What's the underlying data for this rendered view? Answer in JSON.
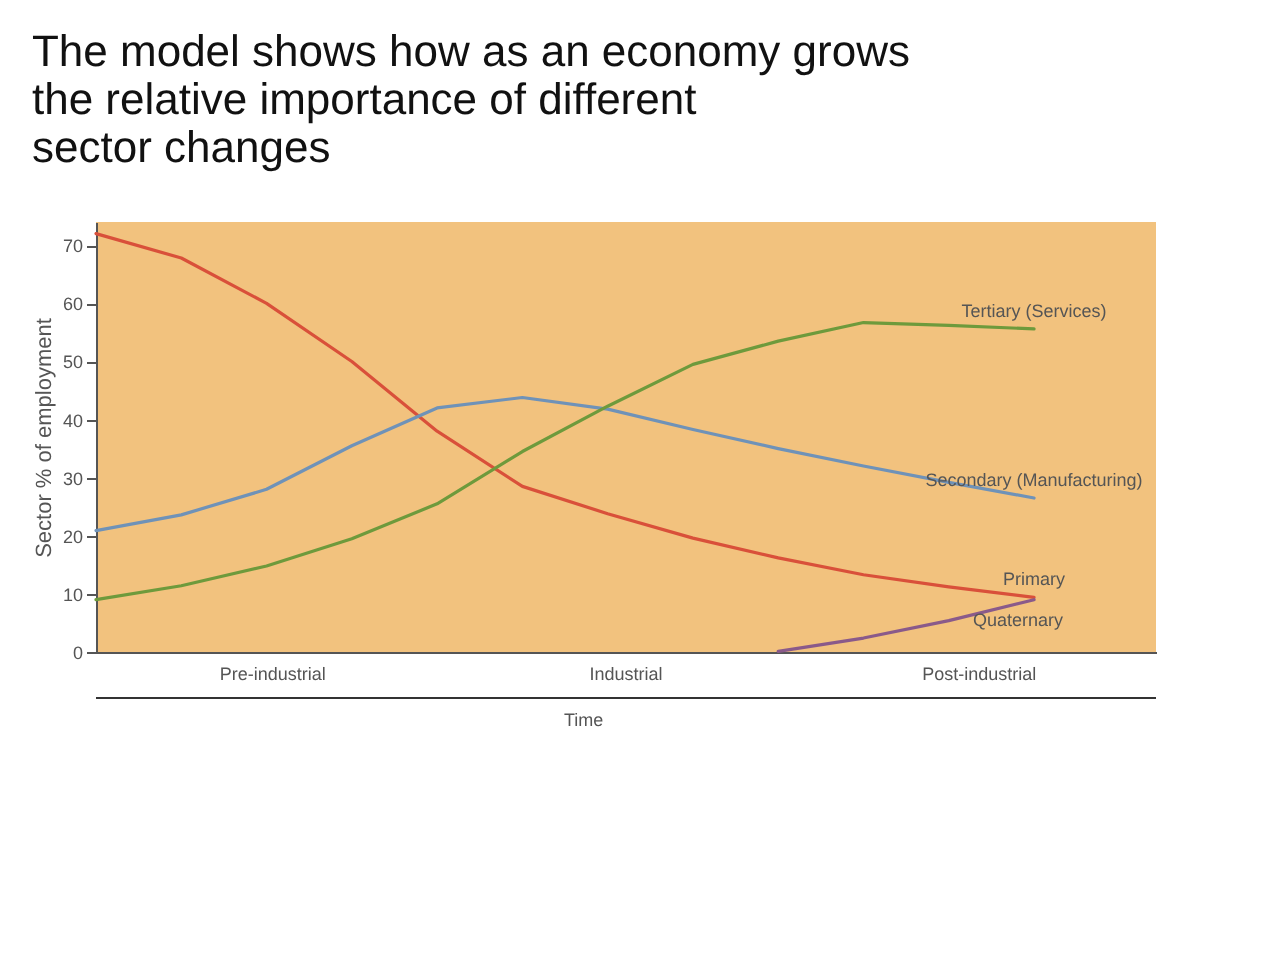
{
  "chart_data": {
    "type": "line",
    "title": "The model shows how as an economy grows the relative importance of different sector changes",
    "xlabel": "Time",
    "ylabel": "Sector % of employment",
    "categories": [
      null,
      null,
      null,
      null,
      null,
      null,
      null,
      null,
      null,
      null,
      null,
      null
    ],
    "ylim": [
      0,
      74
    ],
    "yticks": [
      0,
      10,
      20,
      30,
      40,
      50,
      60,
      70
    ],
    "grid": false,
    "legend": false,
    "marker": "none",
    "line_style": "solid",
    "annotations": [
      "Pre-industrial",
      "Industrial",
      "Post-industrial"
    ],
    "series": [
      {
        "name": "Primary",
        "color": "#d9503a",
        "values": [
          72,
          67.8,
          60,
          50,
          38,
          28.5,
          23.8,
          19.6,
          16.2,
          13.3,
          11.2,
          9.4
        ]
      },
      {
        "name": "Secondary (Manufacturing)",
        "color": "#6f92b8",
        "values": [
          20.9,
          23.6,
          28,
          35.5,
          42,
          43.8,
          41.8,
          38.3,
          35,
          32,
          29.2,
          26.5
        ]
      },
      {
        "name": "Tertiary (Services)",
        "color": "#6e9a3c",
        "values": [
          9,
          11.4,
          14.8,
          19.5,
          25.5,
          34.5,
          42.3,
          49.5,
          53.5,
          56.7,
          56.2,
          55.6
        ]
      },
      {
        "name": "Quaternary",
        "color": "#8a5a8a",
        "values": [
          null,
          null,
          null,
          null,
          null,
          null,
          null,
          null,
          0.1,
          2.4,
          5.4,
          9
        ]
      }
    ]
  }
}
